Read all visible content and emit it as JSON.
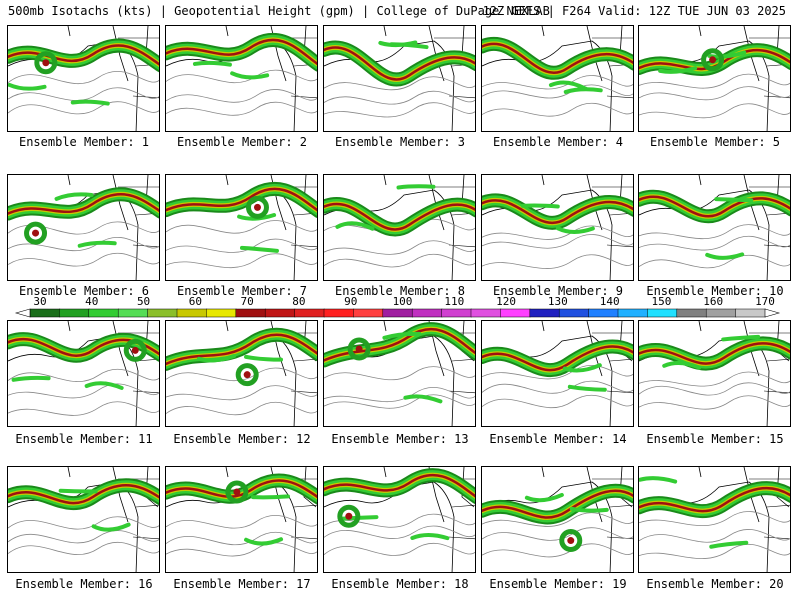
{
  "header": {
    "left": "500mb Isotachs (kts) | Geopotential Height (gpm) | College of DuPage NEXLAB",
    "right": "12Z GEFS | F264 Valid: 12Z TUE JUN 03 2025"
  },
  "members": [
    "Ensemble Member: 1",
    "Ensemble Member: 2",
    "Ensemble Member: 3",
    "Ensemble Member: 4",
    "Ensemble Member: 5",
    "Ensemble Member: 6",
    "Ensemble Member: 7",
    "Ensemble Member: 8",
    "Ensemble Member: 9",
    "Ensemble Member: 10",
    "Ensemble Member: 11",
    "Ensemble Member: 12",
    "Ensemble Member: 13",
    "Ensemble Member: 14",
    "Ensemble Member: 15",
    "Ensemble Member: 16",
    "Ensemble Member: 17",
    "Ensemble Member: 18",
    "Ensemble Member: 19",
    "Ensemble Member: 20"
  ],
  "colorbar": {
    "ticks": [
      "30",
      "40",
      "50",
      "60",
      "70",
      "80",
      "90",
      "100",
      "110",
      "120",
      "130",
      "140",
      "150",
      "160",
      "170"
    ],
    "colors": [
      "#1a6e1a",
      "#22a022",
      "#33cc33",
      "#55dd55",
      "#8bbf2a",
      "#c8c800",
      "#e8e800",
      "#a01010",
      "#c01515",
      "#e02020",
      "#ff2020",
      "#ff4040",
      "#a01fa0",
      "#c030c0",
      "#d040d0",
      "#e050e0",
      "#ff40ff",
      "#2020c0",
      "#2050e0",
      "#2080ff",
      "#20b0ff",
      "#20e0ff",
      "#808080",
      "#a0a0a0",
      "#c8c8c8"
    ]
  }
}
